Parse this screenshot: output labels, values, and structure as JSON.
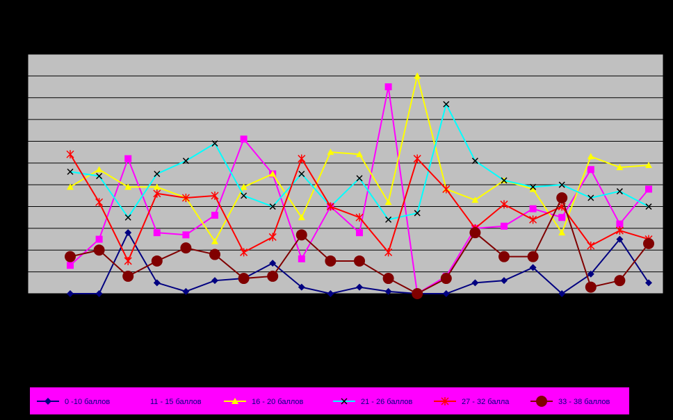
{
  "chart_data": {
    "type": "line",
    "categories": [
      null,
      null,
      null,
      null,
      null,
      null,
      null,
      null,
      null,
      null,
      null,
      null,
      null,
      null,
      null,
      null,
      null,
      null,
      null,
      null,
      null
    ],
    "series": [
      {
        "name": "0 -10 баллов",
        "color": "#000080",
        "marker": "diamond",
        "values": [
          0,
          0,
          2.8,
          0.5,
          0.1,
          0.6,
          0.7,
          1.4,
          0.3,
          0,
          0.3,
          0.1,
          0,
          0,
          0.5,
          0.6,
          1.2,
          0,
          0.9,
          2.5,
          0.5
        ]
      },
      {
        "name": "11 - 15 баллов",
        "color": "#ff00ff",
        "marker": "square",
        "values": [
          1.3,
          2.5,
          6.2,
          2.8,
          2.7,
          3.6,
          7.1,
          5.5,
          1.6,
          4.0,
          2.8,
          9.5,
          0,
          0.8,
          3.0,
          3.1,
          3.9,
          3.5,
          5.7,
          3.2,
          4.8
        ]
      },
      {
        "name": "16 - 20 баллов",
        "color": "#ffff00",
        "marker": "triangle",
        "values": [
          4.9,
          5.7,
          4.9,
          4.9,
          4.4,
          2.4,
          4.9,
          5.5,
          3.5,
          6.5,
          6.4,
          4.2,
          10.0,
          4.8,
          4.3,
          5.2,
          4.8,
          2.8,
          6.3,
          5.8,
          5.9
        ]
      },
      {
        "name": "21 - 26 баллов",
        "color": "#00ffff",
        "marker": "x",
        "values": [
          5.6,
          5.4,
          3.5,
          5.5,
          6.1,
          6.9,
          4.5,
          4.0,
          5.5,
          4.0,
          5.3,
          3.4,
          3.7,
          8.7,
          6.1,
          5.2,
          4.9,
          5.0,
          4.4,
          4.7,
          4.0
        ]
      },
      {
        "name": "27 - 32 балла",
        "color": "#ff0000",
        "marker": "star",
        "values": [
          6.4,
          4.2,
          1.5,
          4.6,
          4.4,
          4.5,
          1.9,
          2.6,
          6.2,
          4.0,
          3.5,
          1.9,
          6.2,
          4.8,
          3.0,
          4.1,
          3.4,
          4.0,
          2.2,
          2.9,
          2.5
        ]
      },
      {
        "name": "33 - 38 баллов",
        "color": "#800000",
        "marker": "circle",
        "values": [
          1.7,
          2.0,
          0.8,
          1.5,
          2.1,
          1.8,
          0.7,
          0.8,
          2.7,
          1.5,
          1.5,
          0.7,
          0,
          0.7,
          2.8,
          1.7,
          1.7,
          4.4,
          0.3,
          0.6,
          2.3
        ]
      }
    ],
    "ylim": [
      0,
      11
    ],
    "yticks": [
      0,
      1,
      2,
      3,
      4,
      5,
      6,
      7,
      8,
      9,
      10,
      11
    ],
    "grid": true,
    "background": "#c0c0c0",
    "legend": "bottom",
    "legend_color": "#ff00ff"
  }
}
